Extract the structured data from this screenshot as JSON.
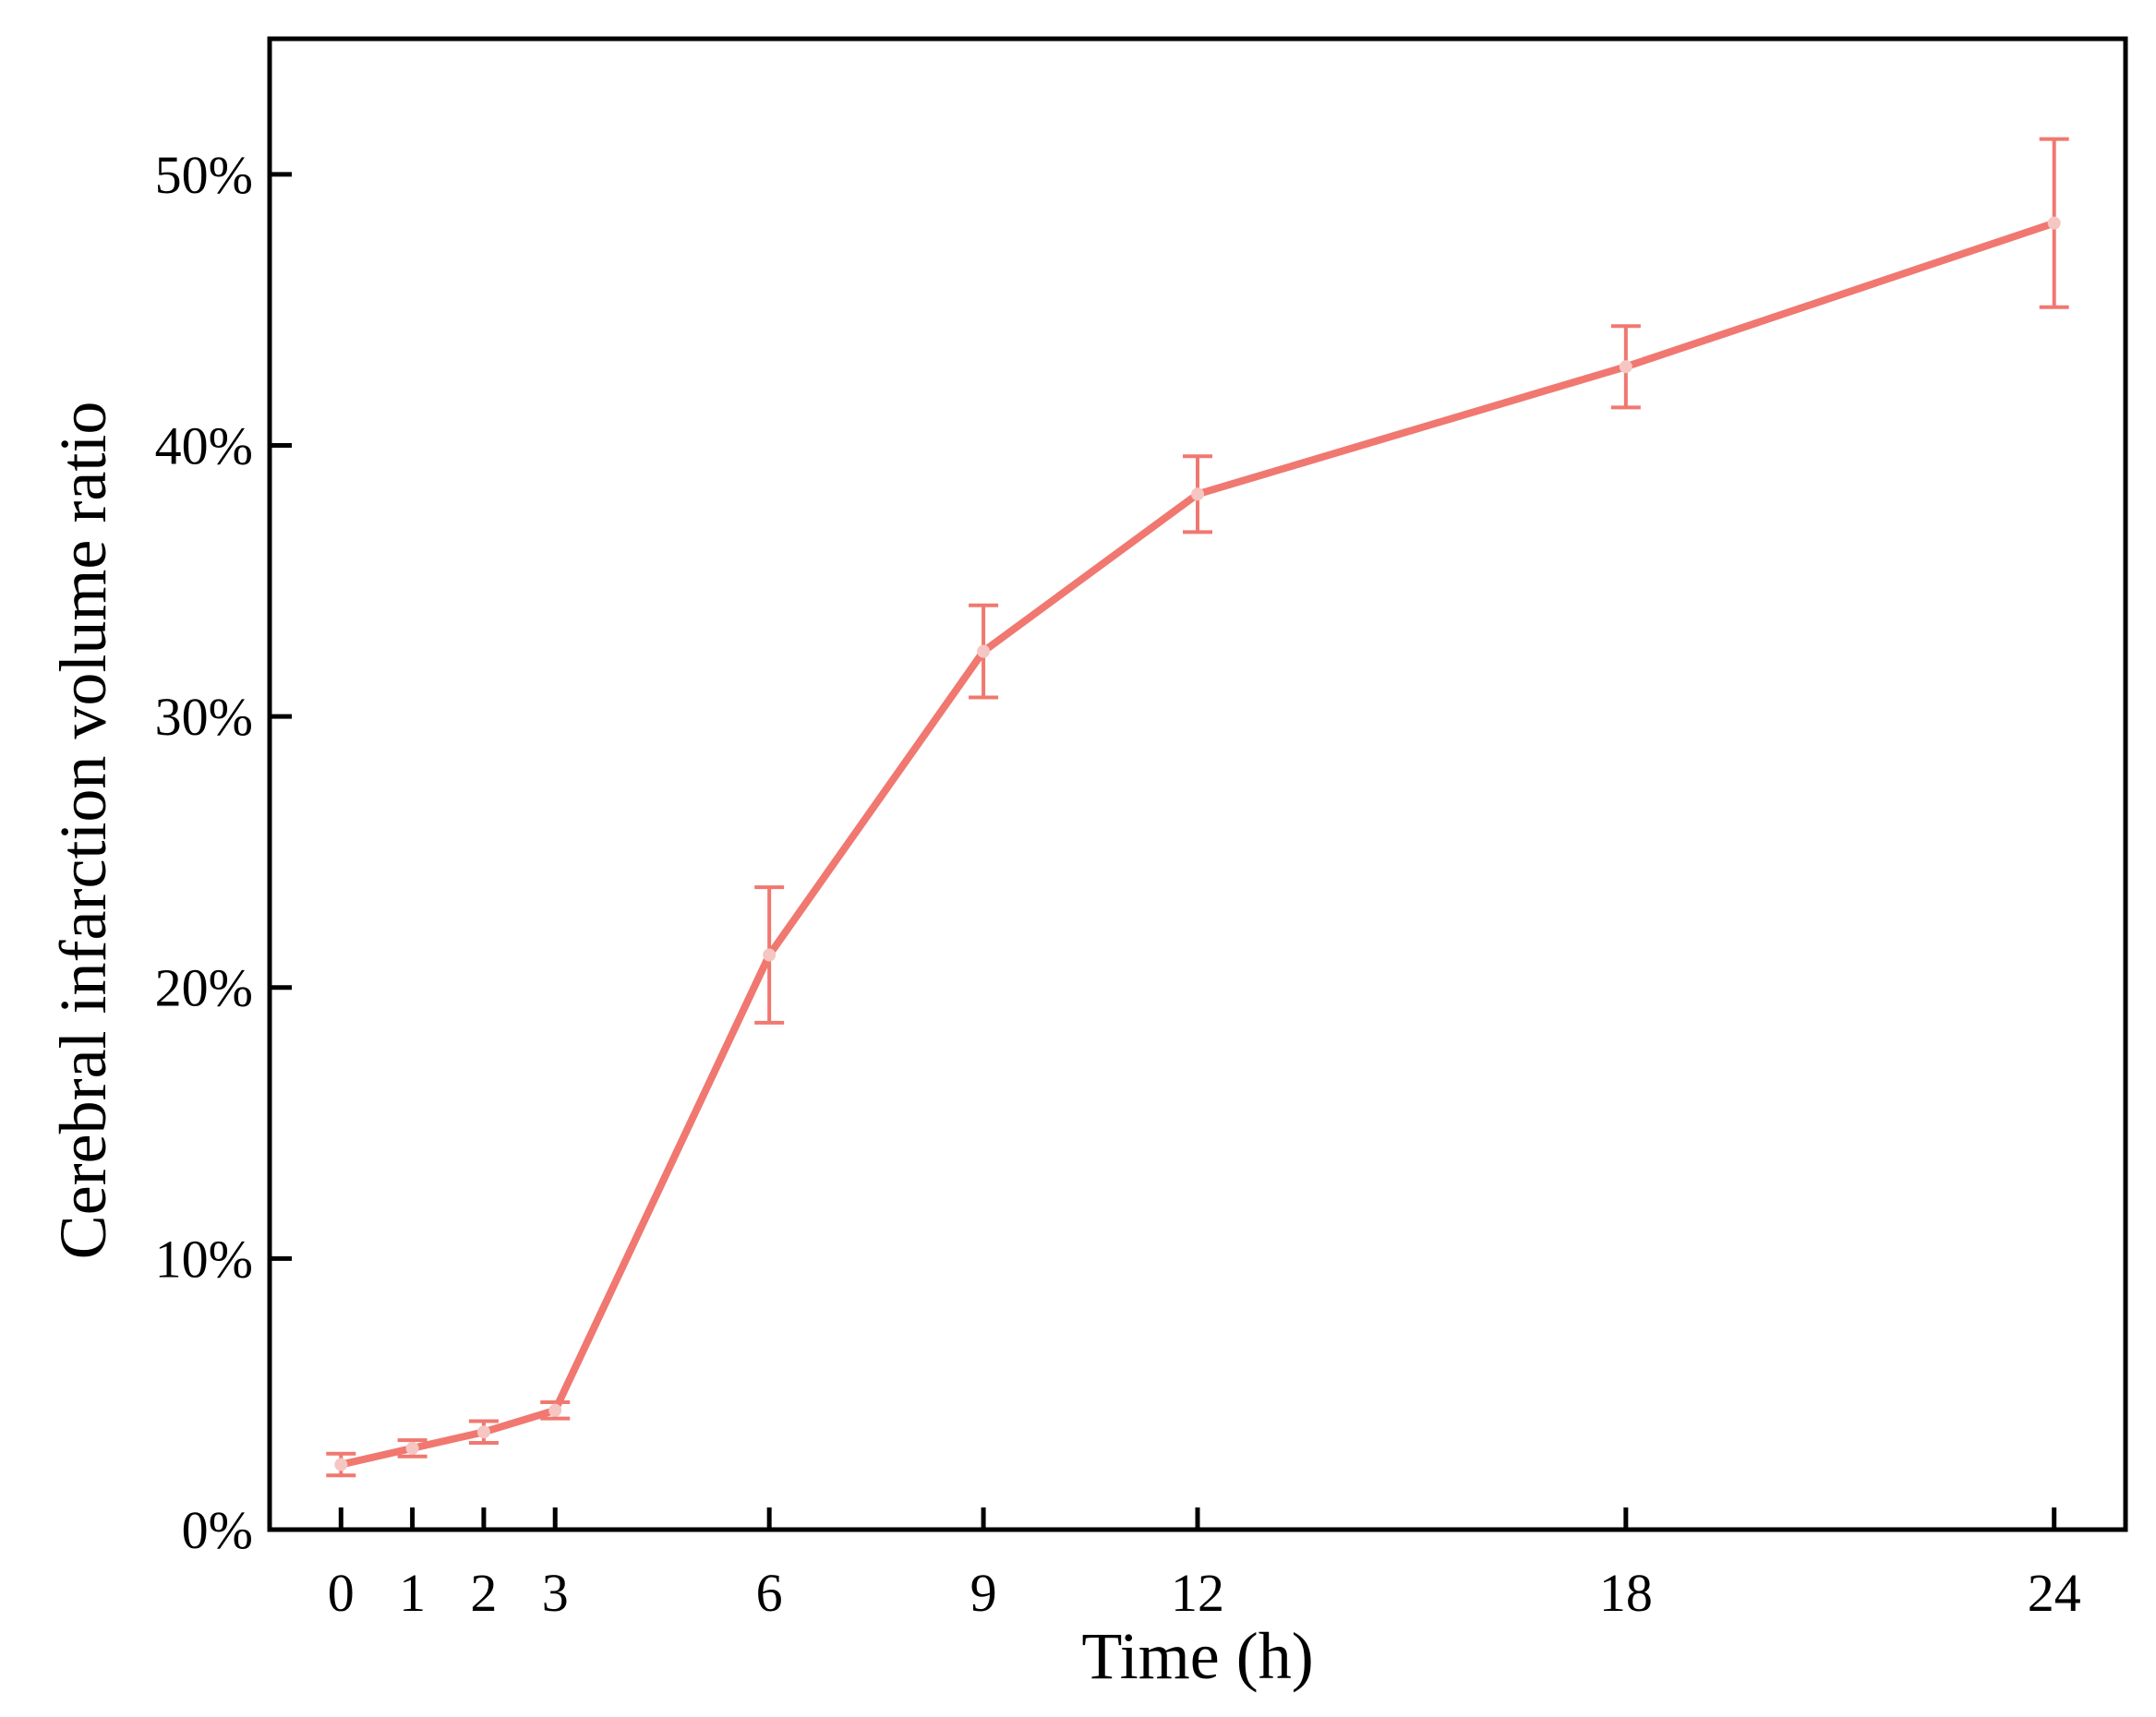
{
  "chart_data": {
    "type": "line",
    "title": "",
    "xlabel": "Time (h)",
    "ylabel": "Cerebral infarction volume ratio",
    "x": [
      0,
      1,
      2,
      3,
      6,
      9,
      12,
      18,
      24
    ],
    "x_tick_labels": [
      "0",
      "1",
      "2",
      "3",
      "6",
      "9",
      "12",
      "18",
      "24"
    ],
    "xlim": [
      -1,
      25
    ],
    "ylim": [
      0,
      0.55
    ],
    "y_ticks": [
      0,
      0.1,
      0.2,
      0.3,
      0.4,
      0.5
    ],
    "y_tick_labels": [
      "0%",
      "10%",
      "20%",
      "30%",
      "40%",
      "50%"
    ],
    "grid": false,
    "legend": "none",
    "series": [
      {
        "values": [
          0.024,
          0.03,
          0.036,
          0.044,
          0.212,
          0.324,
          0.382,
          0.429,
          0.482
        ],
        "error": [
          0.004,
          0.003,
          0.004,
          0.003,
          0.025,
          0.017,
          0.014,
          0.015,
          0.031
        ],
        "color": "#f07870",
        "marker_color": "#f6c6c2"
      }
    ]
  }
}
